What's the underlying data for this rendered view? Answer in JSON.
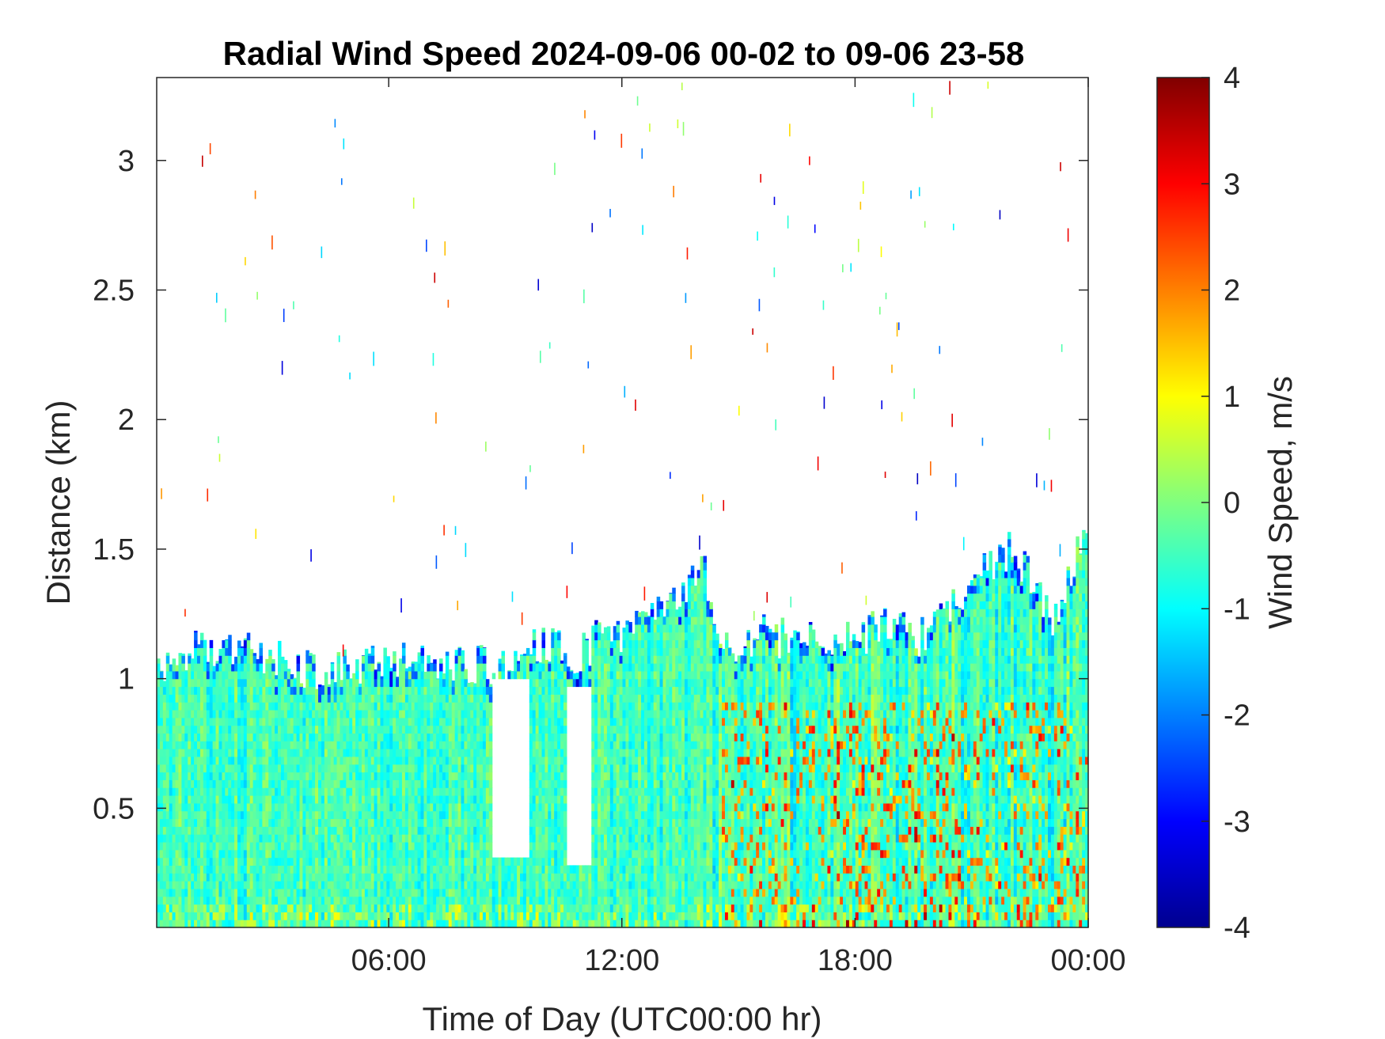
{
  "chart_data": {
    "type": "heatmap",
    "title": "Radial Wind Speed 2024-09-06 00-02 to 09-06 23-58",
    "xlabel": "Time of Day (UTC00:00 hr)",
    "ylabel": "Distance (km)",
    "x_tick_labels": [
      "06:00",
      "12:00",
      "18:00",
      "00:00"
    ],
    "x_tick_hours": [
      6,
      12,
      18,
      24
    ],
    "xlim_hours": [
      0.03,
      24
    ],
    "y_ticks": [
      0.5,
      1,
      1.5,
      2,
      2.5,
      3
    ],
    "y_tick_labels": [
      "0.5",
      "1",
      "1.5",
      "2",
      "2.5",
      "3"
    ],
    "ylim": [
      0.04,
      3.32
    ],
    "colorbar": {
      "label": "Wind Speed, m/s",
      "colormap": "jet",
      "range": [
        -4,
        4
      ],
      "ticks": [
        4,
        3,
        2,
        1,
        0,
        -1,
        -2,
        -3,
        -4
      ],
      "tick_labels": [
        "4",
        "3",
        "2",
        "1",
        "0",
        "-1",
        "-2",
        "-3",
        "-4"
      ]
    },
    "data_top_profile": {
      "hours": [
        0,
        0.5,
        1,
        1.5,
        2,
        2.5,
        3,
        3.5,
        4,
        4.5,
        5,
        5.5,
        6,
        6.5,
        7,
        7.5,
        8,
        8.3,
        8.5,
        9,
        9.5,
        10,
        10.5,
        11,
        11.5,
        12,
        12.5,
        13,
        13.5,
        14,
        14.5,
        15,
        15.5,
        16,
        16.5,
        17,
        17.5,
        18,
        18.5,
        19,
        19.5,
        20,
        20.5,
        21,
        21.5,
        22,
        22.5,
        23,
        23.5,
        24
      ],
      "top_km": [
        1.05,
        1.1,
        1.12,
        1.1,
        1.1,
        1.12,
        1.08,
        1.06,
        1.03,
        1.05,
        1.06,
        1.06,
        1.07,
        1.06,
        1.06,
        1.05,
        1.05,
        1.05,
        1.05,
        1.05,
        1.1,
        1.15,
        1.1,
        1.1,
        1.2,
        1.15,
        1.25,
        1.3,
        1.35,
        1.45,
        1.15,
        1.1,
        1.2,
        1.15,
        1.2,
        1.15,
        1.15,
        1.15,
        1.2,
        1.2,
        1.15,
        1.2,
        1.3,
        1.4,
        1.45,
        1.5,
        1.4,
        1.2,
        1.4,
        1.65
      ]
    },
    "data_gaps": [
      {
        "from_hour": 8.6,
        "to_hour": 9.6,
        "from_km": 0.3,
        "to_km": 1.0
      },
      {
        "from_hour": 10.5,
        "to_hour": 11.2,
        "from_km": 0.28,
        "to_km": 0.95
      }
    ]
  }
}
